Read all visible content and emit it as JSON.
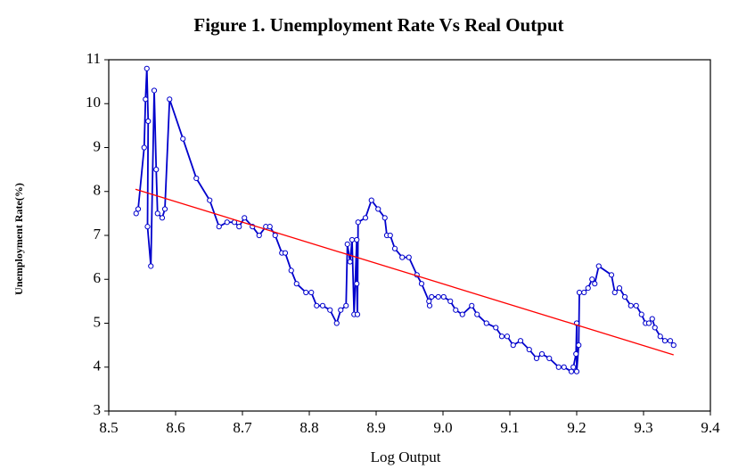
{
  "chart_data": {
    "type": "line",
    "title": "Figure 1. Unemployment Rate Vs Real Output",
    "x_label": "Log Output",
    "y_label": "Unemployment Rate(%)",
    "xlim": [
      8.5,
      9.4
    ],
    "ylim": [
      3,
      11
    ],
    "xticks": [
      8.5,
      8.6,
      8.7,
      8.8,
      8.9,
      {
        "value": 9,
        "label": "9.0"
      },
      9.1,
      9.2,
      9.3,
      9.4
    ],
    "yticks": [
      3,
      4,
      5,
      6,
      7,
      8,
      9,
      10,
      11
    ],
    "series": [
      {
        "color": "#0000cc",
        "markers": true,
        "x": [
          8.541,
          8.544,
          8.553,
          8.555,
          8.557,
          8.559,
          8.558,
          8.563,
          8.568,
          8.571,
          8.573,
          8.58,
          8.584,
          8.591,
          8.611,
          8.631,
          8.651,
          8.665,
          8.677,
          8.688,
          8.695,
          8.703,
          8.715,
          8.725,
          8.735,
          8.741,
          8.749,
          8.759,
          8.764,
          8.773,
          8.781,
          8.795,
          8.803,
          8.811,
          8.82,
          8.831,
          8.841,
          8.847,
          8.855,
          8.857,
          8.861,
          8.864,
          8.867,
          8.871,
          8.871,
          8.872,
          8.873,
          8.884,
          8.893,
          8.903,
          8.913,
          8.916,
          8.921,
          8.928,
          8.939,
          8.949,
          8.961,
          8.968,
          8.979,
          8.98,
          8.983,
          8.993,
          9.001,
          9.011,
          9.019,
          9.029,
          9.043,
          9.051,
          9.065,
          9.079,
          9.088,
          9.096,
          9.105,
          9.116,
          9.129,
          9.14,
          9.148,
          9.159,
          9.173,
          9.181,
          9.192,
          9.195,
          9.199,
          9.2,
          9.2,
          9.203,
          9.204,
          9.211,
          9.217,
          9.223,
          9.227,
          9.233,
          9.252,
          9.257,
          9.264,
          9.272,
          9.281,
          9.289,
          9.297,
          9.303,
          9.308,
          9.313,
          9.317,
          9.325,
          9.332,
          9.34,
          9.345
        ],
        "values": [
          7.5,
          7.6,
          9.0,
          10.1,
          10.8,
          9.6,
          7.2,
          6.3,
          10.3,
          8.5,
          7.5,
          7.4,
          7.6,
          10.1,
          9.2,
          8.3,
          7.8,
          7.2,
          7.3,
          7.3,
          7.2,
          7.4,
          7.2,
          7.0,
          7.2,
          7.2,
          7.0,
          6.6,
          6.6,
          6.2,
          5.9,
          5.7,
          5.7,
          5.4,
          5.4,
          5.3,
          5.0,
          5.3,
          5.4,
          6.8,
          6.4,
          6.9,
          5.2,
          6.9,
          5.9,
          5.2,
          7.3,
          7.4,
          7.8,
          7.6,
          7.4,
          7.0,
          7.0,
          6.7,
          6.5,
          6.5,
          6.1,
          5.9,
          5.5,
          5.4,
          5.6,
          5.6,
          5.6,
          5.5,
          5.3,
          5.2,
          5.4,
          5.2,
          5.0,
          4.9,
          4.7,
          4.7,
          4.5,
          4.6,
          4.4,
          4.2,
          4.3,
          4.2,
          4.0,
          4.0,
          3.9,
          4.0,
          4.3,
          5.0,
          3.9,
          4.5,
          5.7,
          5.7,
          5.8,
          6.0,
          5.9,
          6.3,
          6.1,
          5.7,
          5.8,
          5.6,
          5.4,
          5.4,
          5.2,
          5.0,
          5.0,
          5.1,
          4.9,
          4.7,
          4.6,
          4.6,
          4.5
        ]
      },
      {
        "color": "#ff0000",
        "markers": false,
        "x": [
          8.54,
          9.345
        ],
        "values": [
          8.05,
          4.28
        ]
      }
    ]
  }
}
